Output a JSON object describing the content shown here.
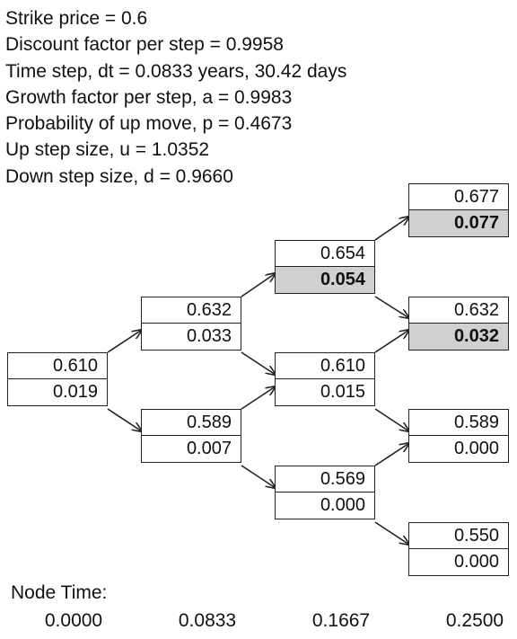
{
  "parameters": [
    "Strike price = 0.6",
    "Discount factor per step = 0.9958",
    "Time step, dt = 0.0833 years, 30.42 days",
    "Growth factor per step, a = 0.9983",
    "Probability of up move, p = 0.4673",
    "Up step size, u = 1.0352",
    "Down step size, d = 0.9660"
  ],
  "nodes": [
    {
      "id": "n00",
      "step": 0,
      "price": "0.610",
      "value": "0.019",
      "highlight": false
    },
    {
      "id": "n10",
      "step": 1,
      "price": "0.632",
      "value": "0.033",
      "highlight": false
    },
    {
      "id": "n11",
      "step": 1,
      "price": "0.589",
      "value": "0.007",
      "highlight": false
    },
    {
      "id": "n20",
      "step": 2,
      "price": "0.654",
      "value": "0.054",
      "highlight": true
    },
    {
      "id": "n21",
      "step": 2,
      "price": "0.610",
      "value": "0.015",
      "highlight": false
    },
    {
      "id": "n22",
      "step": 2,
      "price": "0.569",
      "value": "0.000",
      "highlight": false
    },
    {
      "id": "n30",
      "step": 3,
      "price": "0.677",
      "value": "0.077",
      "highlight": true
    },
    {
      "id": "n31",
      "step": 3,
      "price": "0.632",
      "value": "0.032",
      "highlight": true
    },
    {
      "id": "n32",
      "step": 3,
      "price": "0.589",
      "value": "0.000",
      "highlight": false
    },
    {
      "id": "n33",
      "step": 3,
      "price": "0.550",
      "value": "0.000",
      "highlight": false
    }
  ],
  "node_time": {
    "label": "Node Time:",
    "values": [
      "0.0000",
      "0.0833",
      "0.1667",
      "0.2500"
    ]
  }
}
